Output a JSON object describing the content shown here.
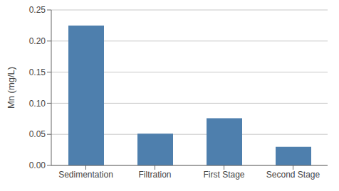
{
  "chart_data": {
    "type": "bar",
    "categories": [
      "Sedimentation",
      "Filtration",
      "First Stage",
      "Second Stage"
    ],
    "values": [
      0.225,
      0.051,
      0.076,
      0.03
    ],
    "color": "#4e7fad",
    "ylabel": "Mn (mg/L)",
    "ylim": [
      0,
      0.25
    ],
    "yticks": [
      {
        "value": 0,
        "label": "0.00"
      },
      0.05,
      {
        "value": 0.1,
        "label": "0.10"
      },
      0.15,
      {
        "value": 0.2,
        "label": "0.20"
      },
      0.25
    ],
    "grid": true
  }
}
